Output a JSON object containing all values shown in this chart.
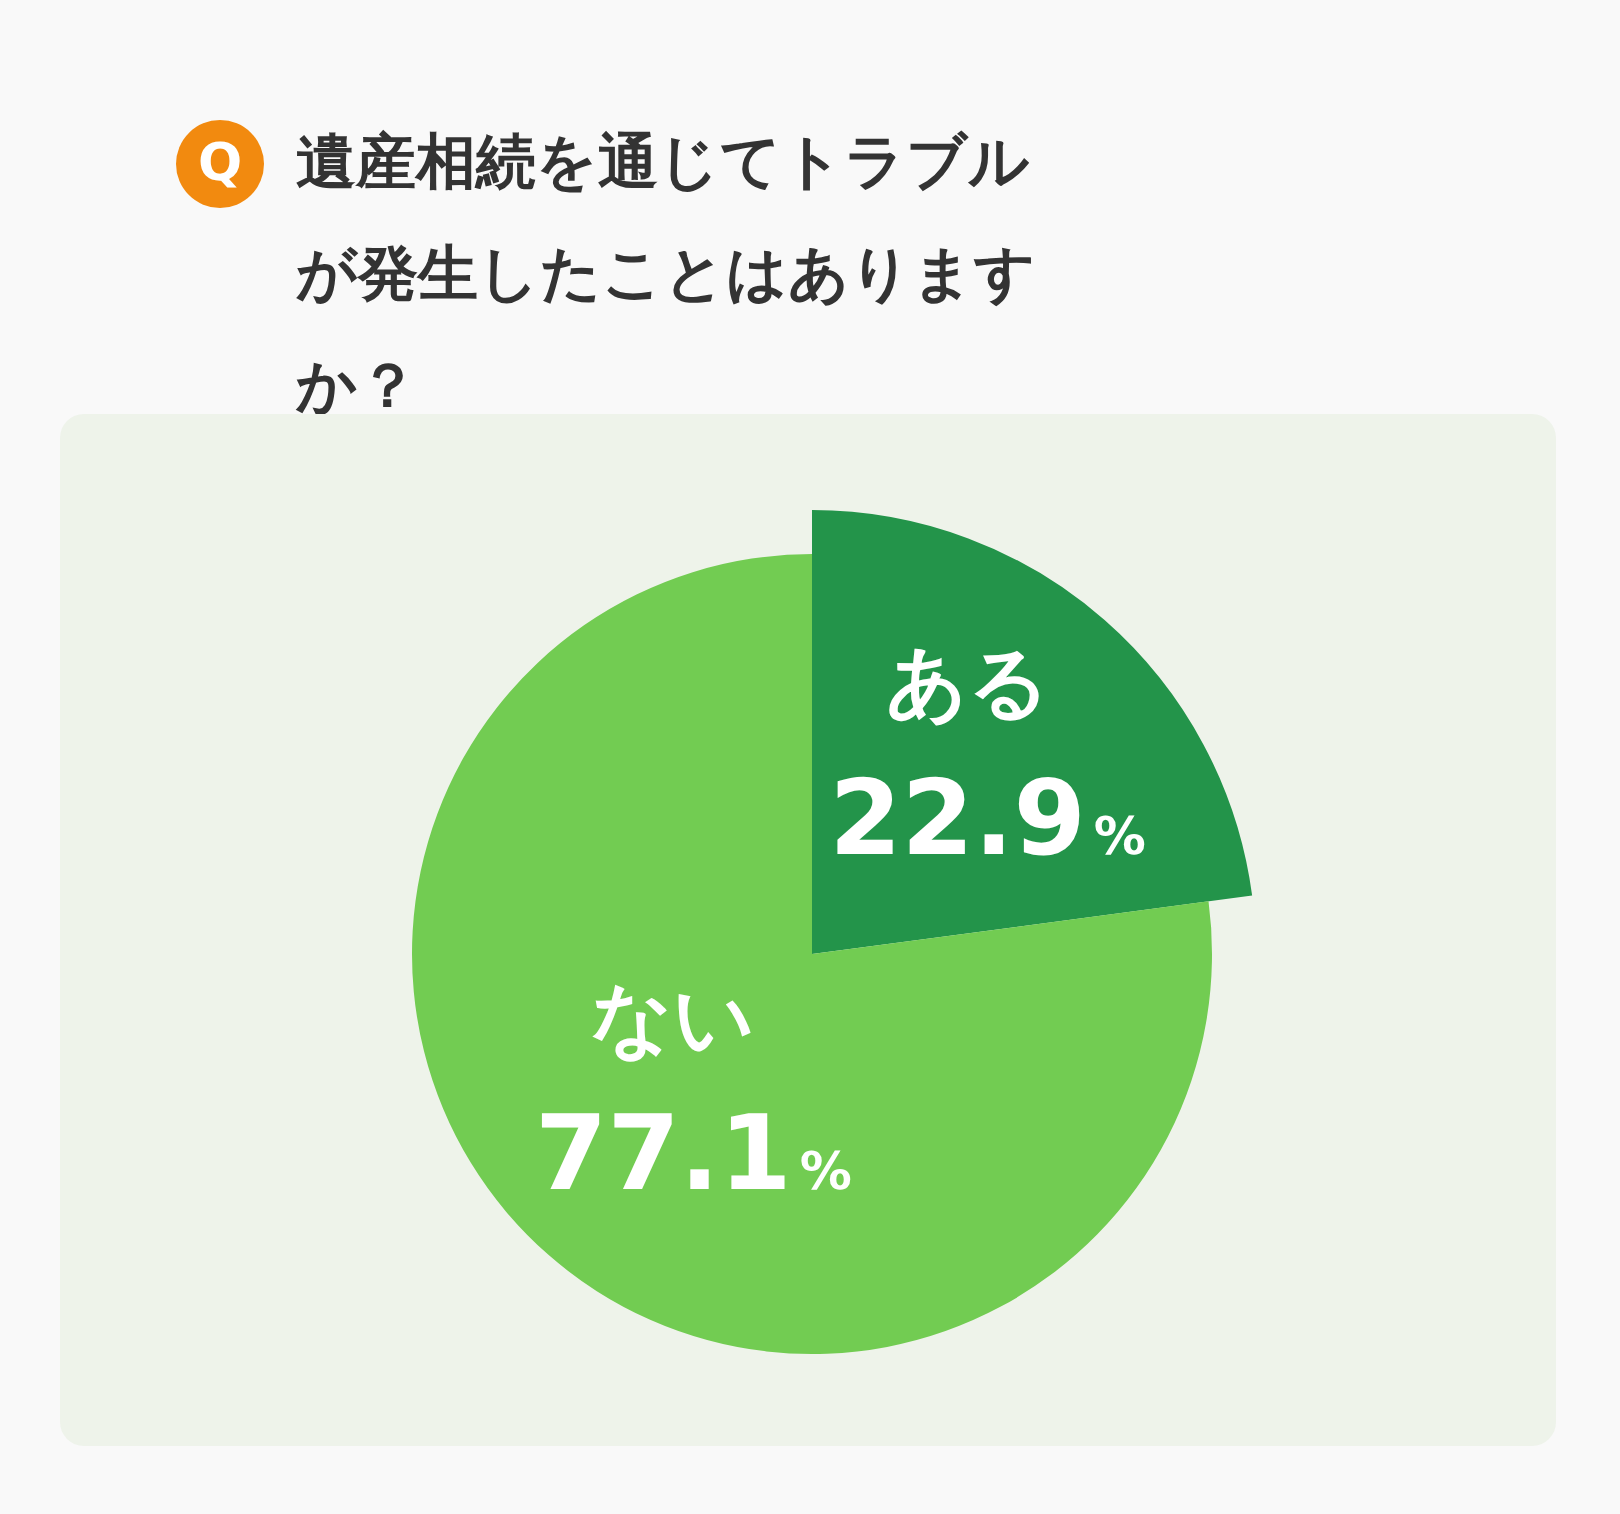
{
  "chart_data": {
    "type": "pie",
    "title": "遺産相続を通じてトラブルが発生したことはありますか？",
    "annotations": [
      "Q"
    ],
    "categories": [
      "ある",
      "ない"
    ],
    "values": [
      22.9,
      77.1
    ],
    "colors": [
      "#23944a",
      "#72cc52"
    ],
    "value_labels": [
      "22.9%",
      "77.1%"
    ],
    "legend": false
  }
}
